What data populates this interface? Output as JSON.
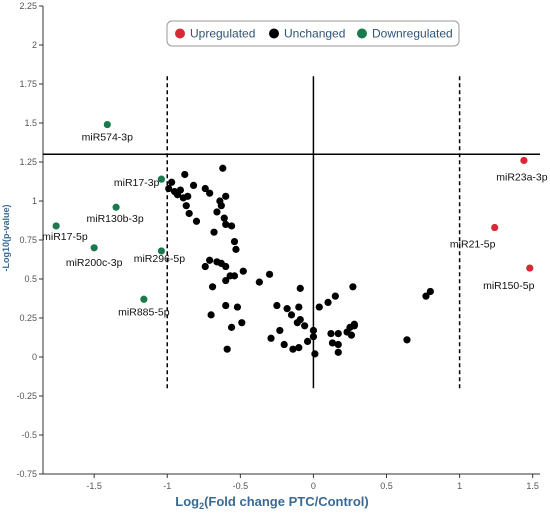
{
  "colors": {
    "upregulated": "#d62b36",
    "unchanged": "#000000",
    "downregulated": "#1a7a4e",
    "axis_title": "#3a6a93"
  },
  "chart_data": {
    "type": "scatter",
    "title": "",
    "xlabel_prefix": "Log",
    "xlabel_sub": "2",
    "xlabel_rest": "(Fold change PTC/Control)",
    "ylabel": "-Log10(p-value)",
    "xlim": [
      -1.85,
      1.55
    ],
    "ylim": [
      -0.75,
      2.25
    ],
    "x_ticks": [
      "-1.5",
      "-1",
      "-0.5",
      "0",
      "0.5",
      "1",
      "1.5"
    ],
    "y_ticks": [
      "-0.75",
      "-0.5",
      "-0.25",
      "0",
      "0.25",
      "0.5",
      "0.75",
      "1",
      "1.25",
      "1.5",
      "1.75",
      "2",
      "2.25"
    ],
    "grid": false,
    "legend_position": "top-right",
    "thresholds": {
      "p_value_line": 1.3,
      "fold_change_lines": [
        -1,
        1
      ],
      "zero_line": 0
    },
    "legend": [
      {
        "label": "Upregulated",
        "key": "upregulated"
      },
      {
        "label": "Unchanged",
        "key": "unchanged"
      },
      {
        "label": "Downregulated",
        "key": "downregulated"
      }
    ],
    "series": [
      {
        "name": "Upregulated",
        "key": "upregulated",
        "points": [
          {
            "x": 1.44,
            "y": 1.26,
            "label": "miR23a-3p"
          },
          {
            "x": 1.24,
            "y": 0.83,
            "label": "miR21-5p"
          },
          {
            "x": 1.48,
            "y": 0.57,
            "label": "miR150-5p"
          }
        ]
      },
      {
        "name": "Downregulated",
        "key": "downregulated",
        "points": [
          {
            "x": -1.41,
            "y": 1.49,
            "label": "miR574-3p"
          },
          {
            "x": -1.04,
            "y": 1.14,
            "label": "miR17-3p"
          },
          {
            "x": -1.35,
            "y": 0.96,
            "label": "miR130b-3p"
          },
          {
            "x": -1.76,
            "y": 0.84,
            "label": "miR17-5p"
          },
          {
            "x": -1.5,
            "y": 0.7,
            "label": "miR200c-3p"
          },
          {
            "x": -1.04,
            "y": 0.68,
            "label": "miR296-5p"
          },
          {
            "x": -1.16,
            "y": 0.37,
            "label": "miR885-5p"
          }
        ]
      },
      {
        "name": "Unchanged",
        "key": "unchanged",
        "points": [
          {
            "x": -0.99,
            "y": 1.08
          },
          {
            "x": -0.97,
            "y": 1.12
          },
          {
            "x": -0.95,
            "y": 1.06
          },
          {
            "x": -0.93,
            "y": 1.04
          },
          {
            "x": -0.91,
            "y": 1.07
          },
          {
            "x": -0.89,
            "y": 1.02
          },
          {
            "x": -0.88,
            "y": 1.17
          },
          {
            "x": -0.86,
            "y": 1.03
          },
          {
            "x": -0.87,
            "y": 0.97
          },
          {
            "x": -0.85,
            "y": 0.92
          },
          {
            "x": -0.82,
            "y": 1.1
          },
          {
            "x": -0.8,
            "y": 0.87
          },
          {
            "x": -0.74,
            "y": 1.08
          },
          {
            "x": -0.71,
            "y": 1.05
          },
          {
            "x": -0.68,
            "y": 0.8
          },
          {
            "x": -0.66,
            "y": 0.93
          },
          {
            "x": -0.64,
            "y": 1.0
          },
          {
            "x": -0.63,
            "y": 0.97
          },
          {
            "x": -0.61,
            "y": 0.89
          },
          {
            "x": -0.62,
            "y": 1.21
          },
          {
            "x": -0.6,
            "y": 0.85
          },
          {
            "x": -0.6,
            "y": 1.03
          },
          {
            "x": -0.66,
            "y": 0.61
          },
          {
            "x": -0.63,
            "y": 0.6
          },
          {
            "x": -0.6,
            "y": 0.58
          },
          {
            "x": -0.6,
            "y": 0.49
          },
          {
            "x": -0.57,
            "y": 0.52
          },
          {
            "x": -0.54,
            "y": 0.52
          },
          {
            "x": -0.53,
            "y": 0.69
          },
          {
            "x": -0.54,
            "y": 0.74
          },
          {
            "x": -0.56,
            "y": 0.84
          },
          {
            "x": -0.69,
            "y": 0.45
          },
          {
            "x": -0.74,
            "y": 0.58
          },
          {
            "x": -0.71,
            "y": 0.62
          },
          {
            "x": -0.7,
            "y": 0.27
          },
          {
            "x": -0.6,
            "y": 0.33
          },
          {
            "x": -0.56,
            "y": 0.19
          },
          {
            "x": -0.52,
            "y": 0.32
          },
          {
            "x": -0.49,
            "y": 0.22
          },
          {
            "x": -0.59,
            "y": 0.05
          },
          {
            "x": -0.48,
            "y": 0.55
          },
          {
            "x": -0.37,
            "y": 0.48
          },
          {
            "x": -0.3,
            "y": 0.53
          },
          {
            "x": -0.25,
            "y": 0.33
          },
          {
            "x": -0.18,
            "y": 0.31
          },
          {
            "x": -0.1,
            "y": 0.32
          },
          {
            "x": -0.09,
            "y": 0.44
          },
          {
            "x": -0.11,
            "y": 0.22
          },
          {
            "x": -0.23,
            "y": 0.17
          },
          {
            "x": -0.29,
            "y": 0.12
          },
          {
            "x": -0.2,
            "y": 0.08
          },
          {
            "x": -0.14,
            "y": 0.05
          },
          {
            "x": -0.1,
            "y": 0.06
          },
          {
            "x": -0.04,
            "y": 0.1
          },
          {
            "x": -0.06,
            "y": 0.2
          },
          {
            "x": -0.09,
            "y": 0.24
          },
          {
            "x": -0.15,
            "y": 0.27
          },
          {
            "x": 0.0,
            "y": 0.17
          },
          {
            "x": 0.0,
            "y": 0.13
          },
          {
            "x": 0.01,
            "y": 0.02
          },
          {
            "x": 0.04,
            "y": 0.32
          },
          {
            "x": 0.1,
            "y": 0.35
          },
          {
            "x": 0.12,
            "y": 0.15
          },
          {
            "x": 0.13,
            "y": 0.09
          },
          {
            "x": 0.15,
            "y": 0.39
          },
          {
            "x": 0.17,
            "y": 0.15
          },
          {
            "x": 0.17,
            "y": 0.08
          },
          {
            "x": 0.17,
            "y": 0.03
          },
          {
            "x": 0.23,
            "y": 0.16
          },
          {
            "x": 0.25,
            "y": 0.19
          },
          {
            "x": 0.26,
            "y": 0.14
          },
          {
            "x": 0.27,
            "y": 0.45
          },
          {
            "x": 0.28,
            "y": 0.2
          },
          {
            "x": 0.28,
            "y": 0.21
          },
          {
            "x": 0.64,
            "y": 0.11
          },
          {
            "x": 0.77,
            "y": 0.39
          },
          {
            "x": 0.8,
            "y": 0.42
          }
        ]
      }
    ]
  }
}
